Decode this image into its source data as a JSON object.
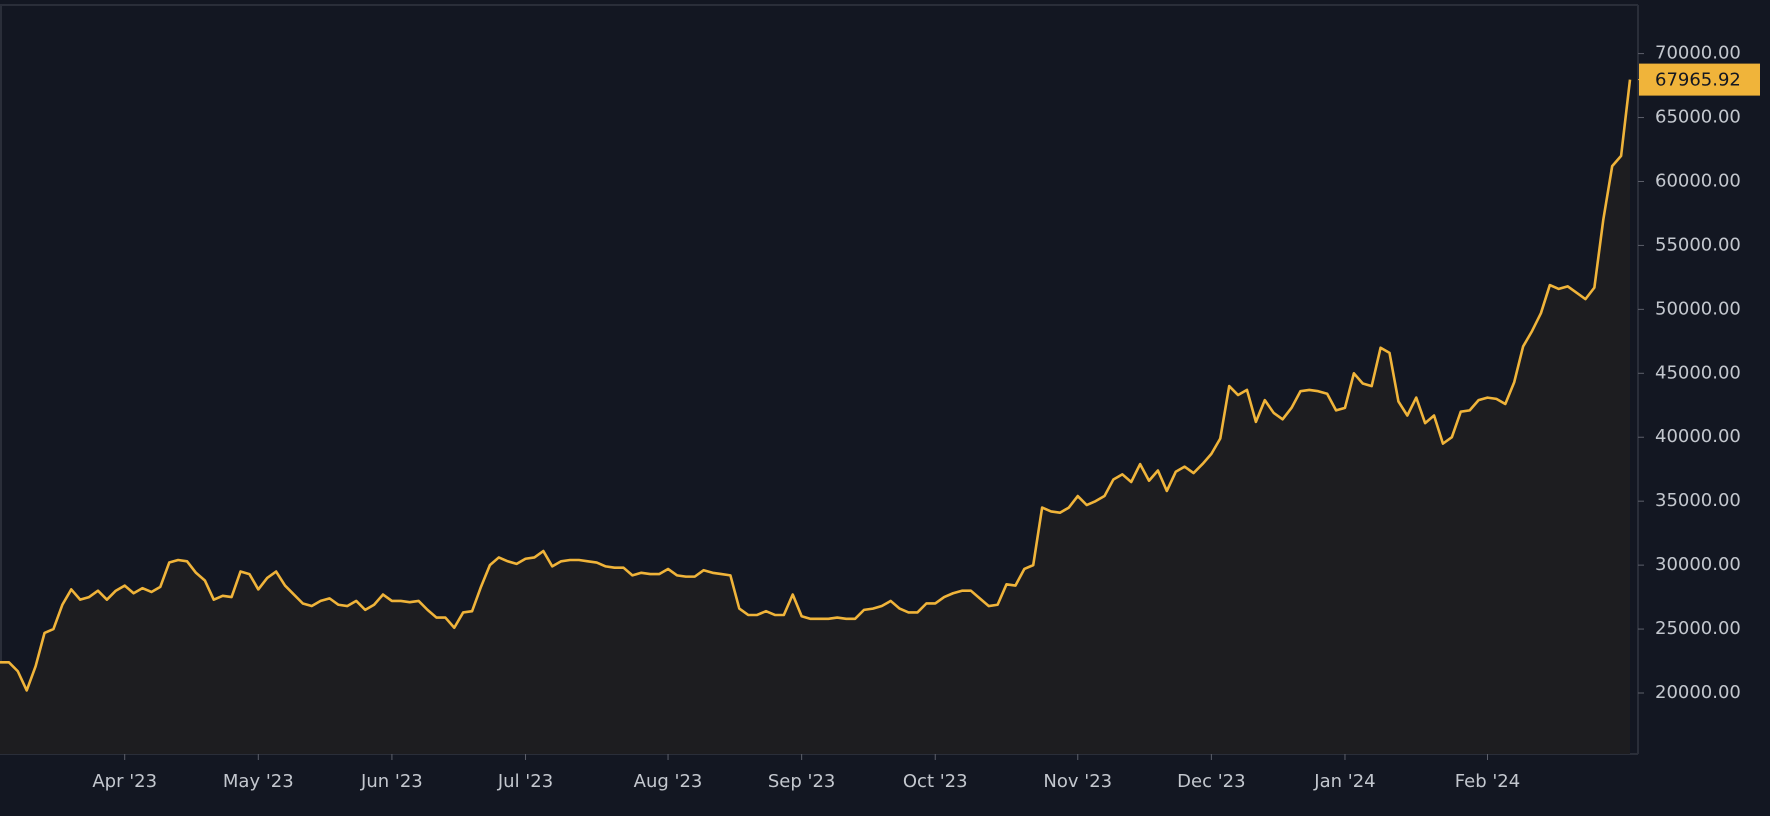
{
  "chart_data": {
    "type": "area",
    "color": "#f0b43a",
    "categories": [
      null,
      null,
      null,
      null,
      null,
      null,
      null,
      null,
      null,
      null,
      null,
      null,
      null,
      null,
      "Apr '23",
      null,
      null,
      null,
      null,
      null,
      null,
      null,
      null,
      null,
      null,
      null,
      null,
      null,
      null,
      "May '23",
      null,
      null,
      null,
      null,
      null,
      null,
      null,
      null,
      null,
      null,
      null,
      null,
      null,
      null,
      "Jun '23",
      null,
      null,
      null,
      null,
      null,
      null,
      null,
      null,
      null,
      null,
      null,
      null,
      null,
      null,
      "Jul '23",
      null,
      null,
      null,
      null,
      null,
      null,
      null,
      null,
      null,
      null,
      null,
      null,
      null,
      null,
      null,
      "Aug '23",
      null,
      null,
      null,
      null,
      null,
      null,
      null,
      null,
      null,
      null,
      null,
      null,
      null,
      null,
      "Sep '23",
      null,
      null,
      null,
      null,
      null,
      null,
      null,
      null,
      null,
      null,
      null,
      null,
      null,
      null,
      "Oct '23",
      null,
      null,
      null,
      null,
      null,
      null,
      null,
      null,
      null,
      null,
      null,
      null,
      null,
      null,
      null,
      "Nov '23",
      null,
      null,
      null,
      null,
      null,
      null,
      null,
      null,
      null,
      null,
      null,
      null,
      null,
      null,
      "Dec '23",
      null,
      null,
      null,
      null,
      null,
      null,
      null,
      null,
      null,
      null,
      null,
      null,
      null,
      null,
      "Jan '24",
      null,
      null,
      null,
      null,
      null,
      null,
      null,
      null,
      null,
      null,
      null,
      null,
      null,
      null,
      null,
      "Feb '24",
      null,
      null,
      null,
      null,
      null,
      null,
      null,
      null,
      null,
      null,
      null,
      null,
      null,
      null,
      null,
      null
    ],
    "values": [
      22400,
      22400,
      21700,
      20200,
      22100,
      24700,
      25000,
      26900,
      28100,
      27300,
      27500,
      28000,
      27300,
      28000,
      28400,
      27800,
      28200,
      27900,
      28300,
      30200,
      30400,
      30300,
      29400,
      28800,
      27300,
      27600,
      27500,
      29500,
      29300,
      28100,
      29000,
      29500,
      28400,
      27700,
      27000,
      26800,
      27200,
      27400,
      26900,
      26800,
      27200,
      26500,
      26900,
      27700,
      27200,
      27200,
      27100,
      27200,
      26500,
      25900,
      25900,
      25100,
      26300,
      26400,
      28300,
      30000,
      30600,
      30300,
      30100,
      30500,
      30600,
      31100,
      29900,
      30300,
      30400,
      30400,
      30300,
      30200,
      29900,
      29800,
      29800,
      29200,
      29400,
      29300,
      29300,
      29700,
      29200,
      29100,
      29100,
      29600,
      29400,
      29300,
      29200,
      26600,
      26100,
      26100,
      26400,
      26100,
      26100,
      27700,
      26000,
      25800,
      25800,
      25800,
      25900,
      25800,
      25800,
      26500,
      26600,
      26800,
      27200,
      26600,
      26300,
      26300,
      27000,
      27000,
      27500,
      27800,
      28000,
      28000,
      27400,
      26800,
      26900,
      28500,
      28400,
      29700,
      30000,
      34500,
      34200,
      34100,
      34500,
      35400,
      34700,
      35000,
      35400,
      36700,
      37100,
      36500,
      37900,
      36600,
      37400,
      35800,
      37300,
      37700,
      37200,
      37900,
      38700,
      39900,
      44000,
      43300,
      43700,
      41200,
      42900,
      41900,
      41400,
      42300,
      43600,
      43700,
      43600,
      43400,
      42100,
      42300,
      45000,
      44200,
      44000,
      47000,
      46600,
      42800,
      41700,
      43100,
      41100,
      41700,
      39500,
      40000,
      42000,
      42100,
      42900,
      43100,
      43000,
      42600,
      44300,
      47100,
      48300,
      49700,
      51900,
      51600,
      51800,
      51300,
      50800,
      51700,
      57000,
      61200,
      62000,
      67965.92
    ],
    "ylim": [
      15230,
      73800
    ],
    "yticks": [
      {
        "value": 20000,
        "label": "20000.00"
      },
      {
        "value": 25000,
        "label": "25000.00"
      },
      {
        "value": 30000,
        "label": "30000.00"
      },
      {
        "value": 35000,
        "label": "35000.00"
      },
      {
        "value": 40000,
        "label": "40000.00"
      },
      {
        "value": 45000,
        "label": "45000.00"
      },
      {
        "value": 50000,
        "label": "50000.00"
      },
      {
        "value": 55000,
        "label": "55000.00"
      },
      {
        "value": 60000,
        "label": "60000.00"
      },
      {
        "value": 65000,
        "label": "65000.00"
      },
      {
        "value": 70000,
        "label": "70000.00"
      }
    ]
  }
}
